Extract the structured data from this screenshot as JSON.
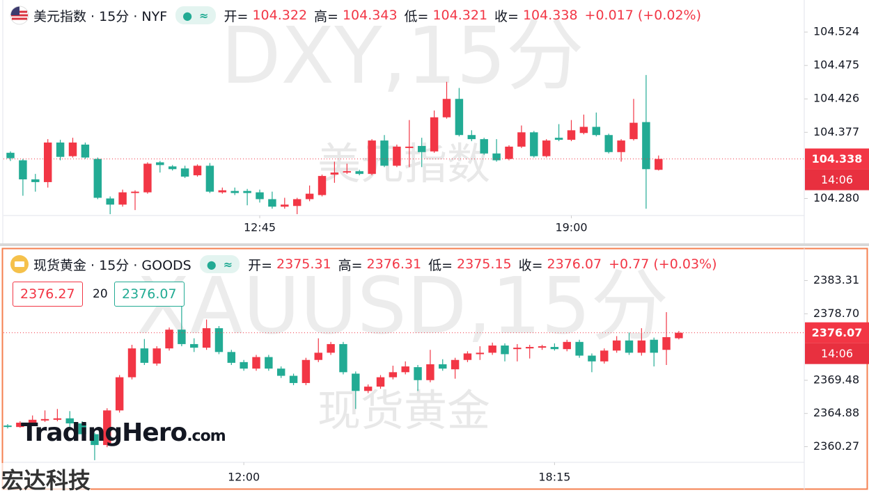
{
  "chart_data": [
    {
      "type": "candlestick",
      "title": "美元指数 · 15分 · NYF",
      "symbol": "DXY,15分",
      "name": "美元指数",
      "ohlc_labels": [
        "开=",
        "高=",
        "低=",
        "收="
      ],
      "change": "+0.017 (+0.02%)",
      "countdown": "14:06",
      "up_color": "#f23645",
      "down_color": "#22ab94",
      "open": [
        104.347,
        104.336,
        104.308,
        104.304,
        104.362,
        104.342,
        104.359,
        104.338,
        104.28,
        104.271,
        104.288,
        104.289,
        104.333,
        104.327,
        104.324,
        104.314,
        104.328,
        104.289,
        104.291,
        104.291,
        104.289,
        104.279,
        104.268,
        104.269,
        104.279,
        104.285,
        104.315,
        104.318,
        104.32,
        104.316,
        104.365,
        104.328,
        104.354,
        104.357,
        104.349,
        104.399,
        104.426,
        104.373,
        104.367,
        104.346,
        104.338,
        104.356,
        104.377,
        104.342,
        104.369,
        104.366,
        104.376,
        104.385,
        104.373,
        104.348,
        104.367,
        104.392,
        104.322
      ],
      "high": [
        104.349,
        104.338,
        104.316,
        104.367,
        104.366,
        104.369,
        104.362,
        104.34,
        104.283,
        104.293,
        104.292,
        104.333,
        104.335,
        104.329,
        104.328,
        104.33,
        104.332,
        104.296,
        104.296,
        104.294,
        104.293,
        104.29,
        104.281,
        104.281,
        104.299,
        104.315,
        104.334,
        104.331,
        104.322,
        104.367,
        104.373,
        104.359,
        104.395,
        104.369,
        104.409,
        104.451,
        104.442,
        104.38,
        104.369,
        104.367,
        104.358,
        104.387,
        104.379,
        104.367,
        104.389,
        104.395,
        104.403,
        104.406,
        104.375,
        104.367,
        104.426,
        104.461,
        104.343
      ],
      "low": [
        104.335,
        104.284,
        104.29,
        104.296,
        104.336,
        104.34,
        104.338,
        104.279,
        104.257,
        104.268,
        104.263,
        104.287,
        104.318,
        104.321,
        104.31,
        104.312,
        104.288,
        104.287,
        104.285,
        104.27,
        104.274,
        104.265,
        104.265,
        104.257,
        104.276,
        104.283,
        104.303,
        104.316,
        104.314,
        104.314,
        104.326,
        104.326,
        104.326,
        104.326,
        104.347,
        104.397,
        104.371,
        104.364,
        104.344,
        104.334,
        104.336,
        104.354,
        104.34,
        104.34,
        104.364,
        104.364,
        104.374,
        104.371,
        104.346,
        104.334,
        104.365,
        104.265,
        104.321
      ],
      "close": [
        104.339,
        104.308,
        104.304,
        104.362,
        104.341,
        104.362,
        104.34,
        104.281,
        104.271,
        104.289,
        104.29,
        104.331,
        104.329,
        104.323,
        104.312,
        104.328,
        104.29,
        104.292,
        104.288,
        104.288,
        104.279,
        104.268,
        104.271,
        104.279,
        104.287,
        104.313,
        104.318,
        104.32,
        104.316,
        104.365,
        104.328,
        104.356,
        104.356,
        104.348,
        104.399,
        104.426,
        104.373,
        104.367,
        104.346,
        104.336,
        104.356,
        104.377,
        104.342,
        104.365,
        104.366,
        104.38,
        104.385,
        104.373,
        104.348,
        104.365,
        104.391,
        104.323,
        104.338
      ],
      "ylim": [
        104.255,
        104.571
      ],
      "yticks": [
        {
          "value": 104.28,
          "label": "104.280"
        },
        104.377,
        104.426,
        104.475,
        104.524
      ],
      "xticks": [
        {
          "value": 20,
          "label": "12:45"
        },
        {
          "value": 45,
          "label": "19:00"
        }
      ]
    },
    {
      "type": "candlestick",
      "title": "现货黄金 · 15分 · GOODS",
      "symbol": "XAUUSD,15分",
      "name": "现货黄金",
      "ohlc_labels": [
        "开=",
        "高=",
        "低=",
        "收="
      ],
      "change": "+0.77 (+0.03%)",
      "countdown": "14:06",
      "up_color": "#f23645",
      "down_color": "#22ab94",
      "quote": {
        "sell": 2376.27,
        "spread": 20,
        "buy": 2376.07
      },
      "open": [
        2363.2,
        2363.0,
        2363.6,
        2363.9,
        2364.0,
        2364.2,
        2363.5,
        2362.0,
        2360.5,
        2365.3,
        2369.9,
        2373.9,
        2371.8,
        2373.9,
        2376.5,
        2374.5,
        2374.0,
        2376.7,
        2373.4,
        2372.0,
        2371.1,
        2372.7,
        2371.1,
        2370.1,
        2369.1,
        2372.3,
        2373.3,
        2374.5,
        2370.4,
        2368.0,
        2368.6,
        2369.9,
        2370.6,
        2371.3,
        2369.5,
        2371.7,
        2371.0,
        2372.3,
        2373.1,
        2373.3,
        2374.3,
        2373.8,
        2373.9,
        2374.0,
        2374.1,
        2373.8,
        2374.8,
        2372.9,
        2372.1,
        2373.6,
        2375.0,
        2373.3,
        2375.1,
        2373.7,
        2375.31
      ],
      "high": [
        2363.4,
        2363.8,
        2364.6,
        2365.3,
        2365.5,
        2365.2,
        2363.8,
        2362.2,
        2365.6,
        2370.2,
        2374.4,
        2375.2,
        2374.2,
        2376.8,
        2379.9,
        2375.3,
        2377.9,
        2377.0,
        2373.7,
        2372.3,
        2373.0,
        2373.0,
        2371.4,
        2370.4,
        2372.6,
        2375.3,
        2374.8,
        2374.8,
        2370.7,
        2368.9,
        2370.2,
        2371.5,
        2372.1,
        2371.6,
        2373.7,
        2372.4,
        2372.6,
        2373.5,
        2374.2,
        2374.7,
        2374.6,
        2374.5,
        2374.4,
        2374.4,
        2374.6,
        2375.1,
        2375.1,
        2373.2,
        2373.9,
        2375.6,
        2376.1,
        2376.7,
        2375.4,
        2378.93,
        2376.31
      ],
      "low": [
        2362.8,
        2362.9,
        2363.4,
        2363.7,
        2363.8,
        2363.0,
        2361.5,
        2358.4,
        2360.2,
        2365.0,
        2369.6,
        2371.6,
        2371.5,
        2373.6,
        2374.2,
        2373.4,
        2373.7,
        2373.1,
        2371.6,
        2370.8,
        2370.8,
        2370.8,
        2369.8,
        2368.8,
        2368.8,
        2372.0,
        2373.0,
        2370.3,
        2365.5,
        2367.7,
        2368.3,
        2369.6,
        2370.3,
        2368.0,
        2369.2,
        2370.8,
        2369.7,
        2372.0,
        2372.3,
        2373.0,
        2372.1,
        2372.1,
        2372.5,
        2373.7,
        2373.6,
        2373.5,
        2372.6,
        2370.6,
        2371.8,
        2373.3,
        2373.0,
        2372.9,
        2371.4,
        2371.6,
        2375.15
      ],
      "close": [
        2363.0,
        2363.6,
        2364.0,
        2364.1,
        2364.2,
        2363.5,
        2362.0,
        2360.5,
        2365.3,
        2369.9,
        2373.9,
        2371.9,
        2373.9,
        2376.5,
        2374.5,
        2374.0,
        2376.7,
        2373.4,
        2371.9,
        2371.1,
        2372.7,
        2371.1,
        2370.1,
        2369.1,
        2372.3,
        2373.3,
        2374.5,
        2370.6,
        2368.0,
        2368.6,
        2369.9,
        2370.6,
        2371.4,
        2369.5,
        2371.7,
        2371.1,
        2372.3,
        2373.2,
        2373.3,
        2374.3,
        2373.1,
        2374.0,
        2374.1,
        2374.2,
        2373.8,
        2374.8,
        2372.9,
        2372.1,
        2373.6,
        2375.0,
        2373.3,
        2375.0,
        2373.3,
        2375.46,
        2376.07
      ],
      "ylim": [
        2358.1,
        2387.51
      ],
      "yticks": [
        2383.31,
        {
          "value": 2378.7,
          "label": "2378.70"
        },
        2369.48,
        2364.88,
        2360.27
      ],
      "xticks": [
        {
          "value": 19,
          "label": "12:00"
        },
        {
          "value": 44,
          "label": "18:15"
        }
      ]
    }
  ],
  "logo": {
    "name": "TradingHero",
    "domain": ".com",
    "brand": "宏达科技"
  }
}
